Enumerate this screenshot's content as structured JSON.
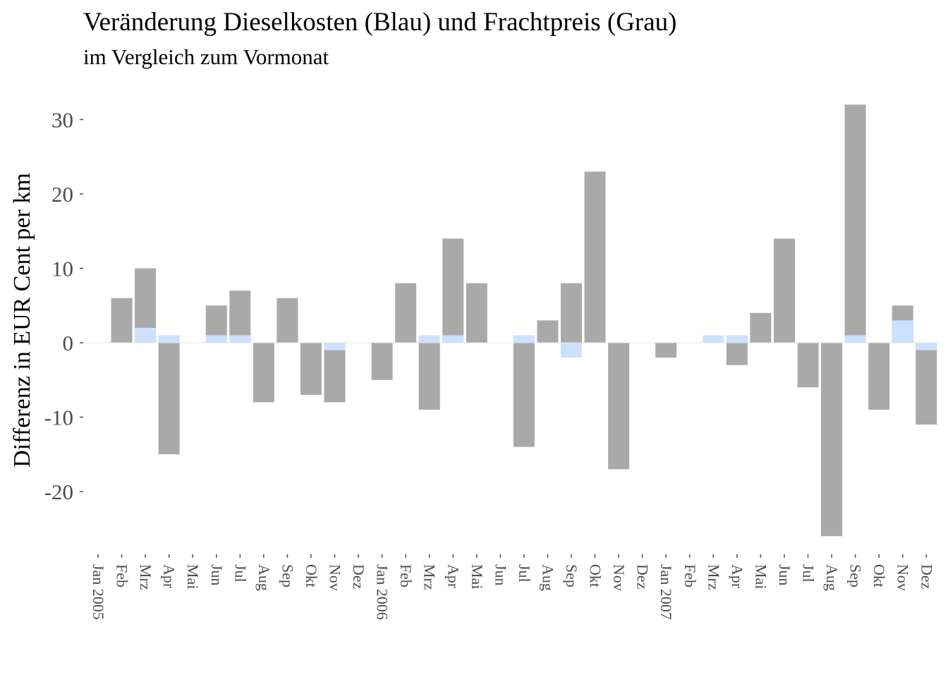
{
  "chart_data": {
    "type": "bar",
    "title": "Veränderung Dieselkosten (Blau) und Frachtpreis (Grau)",
    "subtitle": "im Vergleich zum Vormonat",
    "xlabel": "",
    "ylabel": "Differenz in EUR Cent per km",
    "ylim": [
      -28,
      33
    ],
    "yticks": [
      -20,
      -10,
      0,
      10,
      20,
      30
    ],
    "yticklabels": [
      "-20",
      "-10",
      "0",
      "10",
      "20",
      "30"
    ],
    "grid": false,
    "colors": {
      "fracht": "#a9a9a9",
      "diesel": "#cce0ff",
      "tick": "#4d4d4d",
      "zero_line": "#e5e5e5"
    },
    "categories": [
      "Jan 2005",
      "Feb",
      "Mrz",
      "Apr",
      "Mai",
      "Jun",
      "Jul",
      "Aug",
      "Sep",
      "Okt",
      "Nov",
      "Dez",
      "Jan 2006",
      "Feb",
      "Mrz",
      "Apr",
      "Mai",
      "Jun",
      "Jul",
      "Aug",
      "Sep",
      "Okt",
      "Nov",
      "Dez",
      "Jan 2007",
      "Feb",
      "Mrz",
      "Apr",
      "Mai",
      "Jun",
      "Jul",
      "Aug",
      "Sep",
      "Okt",
      "Nov",
      "Dez"
    ],
    "series": [
      {
        "key": "fracht",
        "values": [
          0,
          6,
          10,
          -15,
          0,
          5,
          7,
          -8,
          6,
          -7,
          -8,
          0,
          -5,
          8,
          -9,
          14,
          8,
          0,
          -14,
          3,
          8,
          23,
          -17,
          0,
          -2,
          0,
          0,
          -3,
          4,
          14,
          -6,
          -26,
          32,
          -9,
          5,
          -11
        ]
      },
      {
        "key": "diesel",
        "values": [
          0,
          0,
          2,
          1,
          0,
          1,
          1,
          0,
          0,
          0,
          -1,
          0,
          0,
          0,
          1,
          1,
          0,
          0,
          1,
          0,
          -2,
          0,
          0,
          0,
          0,
          0,
          1,
          1,
          0,
          0,
          0,
          0,
          1,
          0,
          3,
          -1
        ]
      }
    ]
  }
}
